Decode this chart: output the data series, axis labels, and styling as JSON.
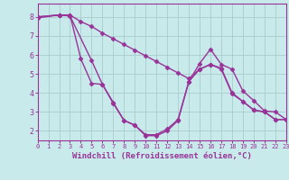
{
  "background_color": "#c8eaea",
  "grid_color": "#a8cccc",
  "line_color": "#993399",
  "marker": "D",
  "marker_size": 2.5,
  "linewidth": 1.0,
  "xlabel": "Windchill (Refroidissement éolien,°C)",
  "xlabel_color": "#993399",
  "xlabel_fontsize": 6.5,
  "tick_color": "#993399",
  "xlim": [
    0,
    23
  ],
  "ylim": [
    1.5,
    8.7
  ],
  "yticks": [
    2,
    3,
    4,
    5,
    6,
    7,
    8
  ],
  "xticks": [
    0,
    1,
    2,
    3,
    4,
    5,
    6,
    7,
    8,
    9,
    10,
    11,
    12,
    13,
    14,
    15,
    16,
    17,
    18,
    19,
    20,
    21,
    22,
    23
  ],
  "curve1_x": [
    0,
    2,
    3,
    5,
    6,
    7,
    8,
    9,
    10,
    11,
    12,
    13,
    14,
    15,
    16,
    17,
    18,
    19,
    20,
    21,
    22,
    23
  ],
  "curve1_y": [
    8.0,
    8.1,
    8.05,
    5.7,
    4.45,
    3.45,
    2.55,
    2.3,
    1.75,
    1.75,
    2.0,
    2.55,
    4.6,
    5.55,
    6.3,
    5.5,
    5.25,
    4.1,
    3.6,
    3.05,
    3.0,
    2.6
  ],
  "curve2_x": [
    0,
    2,
    3,
    4,
    5,
    6,
    7,
    8,
    9,
    10,
    11,
    12,
    13,
    14,
    15,
    16,
    17,
    18,
    19,
    20,
    21,
    22,
    23
  ],
  "curve2_y": [
    7.95,
    8.1,
    8.1,
    5.8,
    4.5,
    4.45,
    3.5,
    2.55,
    2.3,
    1.8,
    1.8,
    2.1,
    2.6,
    4.6,
    5.25,
    5.5,
    5.3,
    4.0,
    3.55,
    3.1,
    3.0,
    2.6,
    2.6
  ],
  "curve3_x": [
    0,
    2,
    3,
    4,
    5,
    6,
    7,
    8,
    9,
    10,
    11,
    12,
    13,
    14,
    15,
    16,
    17,
    18,
    19,
    20,
    21,
    22,
    23
  ],
  "curve3_y": [
    8.0,
    8.1,
    8.1,
    7.75,
    7.5,
    7.15,
    6.85,
    6.55,
    6.25,
    5.95,
    5.65,
    5.35,
    5.05,
    4.75,
    5.25,
    5.5,
    5.25,
    3.95,
    3.55,
    3.1,
    3.0,
    2.6,
    2.6
  ]
}
